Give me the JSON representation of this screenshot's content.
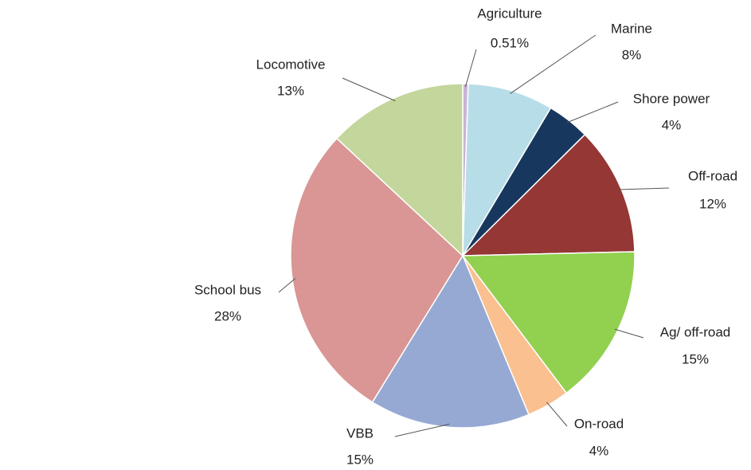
{
  "chart_data": {
    "type": "pie",
    "categories": [
      "Agriculture",
      "Marine",
      "Shore power",
      "Off-road",
      "Ag/ off-road",
      "On-road",
      "VBB",
      "School bus",
      "Locomotive"
    ],
    "values": [
      0.51,
      8,
      4,
      12,
      15,
      4,
      15,
      28,
      13
    ],
    "value_labels": [
      "0.51%",
      "8%",
      "4%",
      "12%",
      "15%",
      "4%",
      "15%",
      "28%",
      "13%"
    ],
    "colors": [
      "#c9b3d6",
      "#b7dde8",
      "#17375e",
      "#953735",
      "#92d050",
      "#fac090",
      "#95a9d3",
      "#d99694",
      "#c3d69b"
    ]
  }
}
